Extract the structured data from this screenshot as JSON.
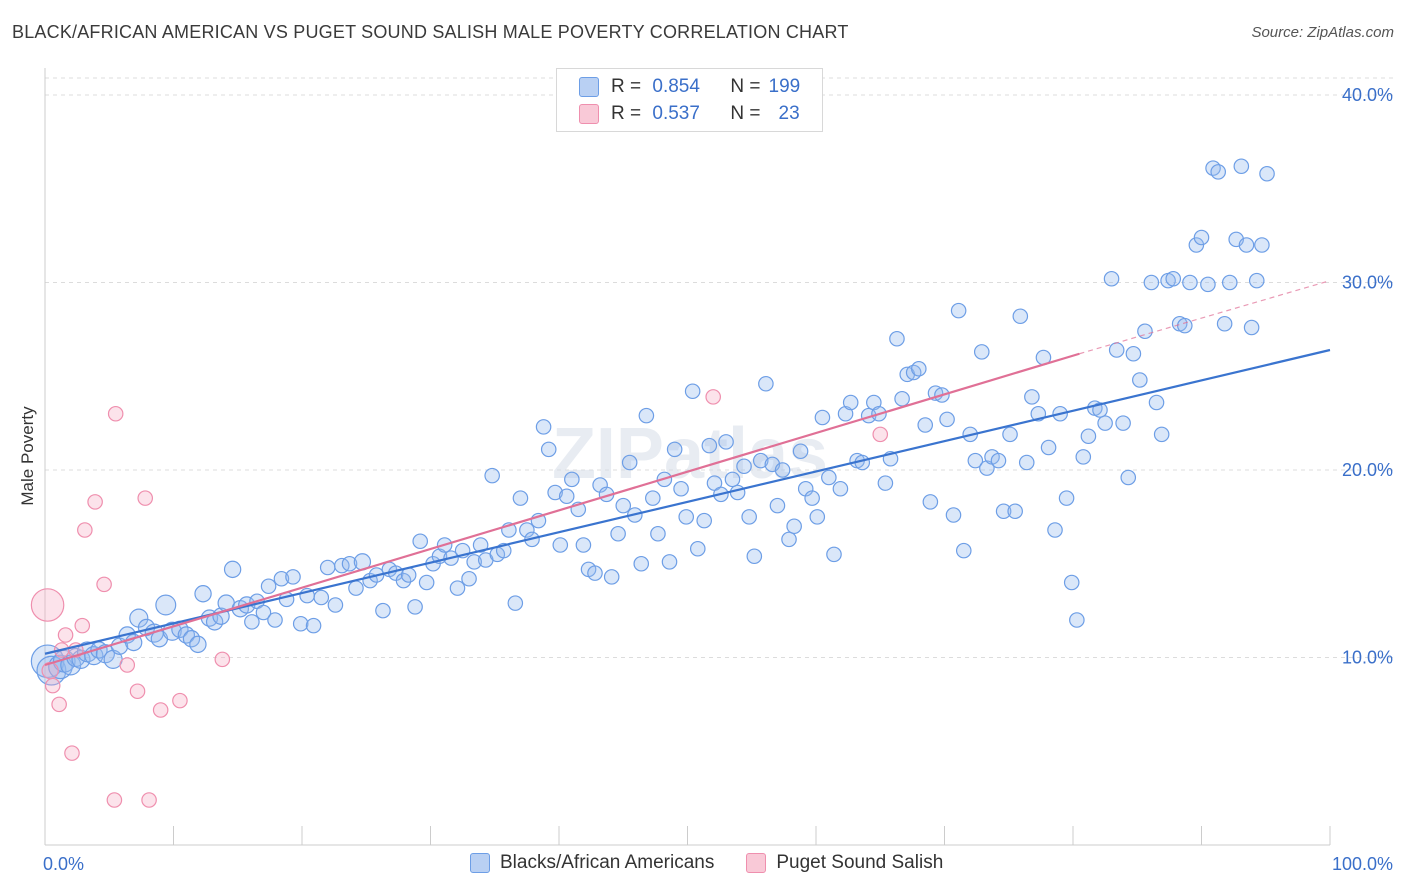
{
  "title": "BLACK/AFRICAN AMERICAN VS PUGET SOUND SALISH MALE POVERTY CORRELATION CHART",
  "source": "Source: ZipAtlas.com",
  "watermark": "ZIPatlas",
  "legend": {
    "row1": {
      "r_label": "R =",
      "r_value": "0.854",
      "n_label": "N =",
      "n_value": "199"
    },
    "row2": {
      "r_label": "R =",
      "r_value": "0.537",
      "n_label": "N =",
      "n_value": "23"
    }
  },
  "chart_data": {
    "type": "scatter",
    "title": "BLACK/AFRICAN AMERICAN VS PUGET SOUND SALISH MALE POVERTY CORRELATION CHART",
    "xlabel": "",
    "ylabel": "Male Poverty",
    "xlim": [
      0,
      100
    ],
    "ylim": [
      0,
      40
    ],
    "x_ticks": [
      "0.0%",
      "100.0%"
    ],
    "y_ticks": [
      {
        "value": 10,
        "label": "10.0%"
      },
      {
        "value": 20,
        "label": "20.0%"
      },
      {
        "value": 30,
        "label": "30.0%"
      },
      {
        "value": 40,
        "label": "40.0%"
      }
    ],
    "grid": true,
    "legend_position": "bottom",
    "colors": {
      "blue": "#6d9ee6",
      "pink": "#ef8fae",
      "blue_line": "#3a74cf",
      "pink_line": "#e07096"
    },
    "series": [
      {
        "name": "Blacks/African Americans",
        "color": "blue",
        "r": 0.854,
        "n": 199,
        "trend": {
          "x0": 0,
          "y0": 10.2,
          "x1": 100,
          "y1": 26.4
        },
        "points": [
          [
            0.2,
            9.8,
            1.8
          ],
          [
            0.5,
            9.3,
            1.6
          ],
          [
            1.2,
            9.5,
            1.3
          ],
          [
            1.5,
            9.8,
            1.2
          ],
          [
            2.0,
            9.6,
            1.1
          ],
          [
            2.4,
            10.0,
            1.0
          ],
          [
            2.8,
            9.9,
            1.0
          ],
          [
            3.3,
            10.3,
            1.1
          ],
          [
            3.8,
            10.1,
            1.0
          ],
          [
            4.2,
            10.4,
            0.9
          ],
          [
            4.7,
            10.2,
            1.0
          ],
          [
            5.3,
            9.9,
            1.0
          ],
          [
            5.8,
            10.6,
            0.9
          ],
          [
            6.4,
            11.2,
            0.9
          ],
          [
            6.9,
            10.8,
            0.9
          ],
          [
            7.3,
            12.1,
            1.0
          ],
          [
            7.9,
            11.6,
            0.9
          ],
          [
            8.5,
            11.3,
            1.0
          ],
          [
            8.9,
            11.0,
            0.9
          ],
          [
            9.4,
            12.8,
            1.1
          ],
          [
            9.9,
            11.4,
            1.0
          ],
          [
            10.5,
            11.5,
            0.9
          ],
          [
            11.0,
            11.2,
            0.9
          ],
          [
            11.4,
            11.0,
            0.9
          ],
          [
            11.9,
            10.7,
            0.9
          ],
          [
            12.3,
            13.4,
            0.9
          ],
          [
            12.8,
            12.1,
            0.9
          ],
          [
            13.2,
            11.9,
            0.9
          ],
          [
            13.7,
            12.2,
            0.9
          ],
          [
            14.1,
            12.9,
            0.9
          ],
          [
            14.6,
            14.7,
            0.9
          ],
          [
            15.2,
            12.6,
            0.9
          ],
          [
            15.7,
            12.8,
            0.9
          ],
          [
            16.1,
            11.9,
            0.8
          ],
          [
            16.5,
            13.0,
            0.8
          ],
          [
            17.0,
            12.4,
            0.8
          ],
          [
            17.4,
            13.8,
            0.8
          ],
          [
            17.9,
            12.0,
            0.8
          ],
          [
            18.4,
            14.2,
            0.8
          ],
          [
            18.8,
            13.1,
            0.8
          ],
          [
            19.3,
            14.3,
            0.8
          ],
          [
            19.9,
            11.8,
            0.8
          ],
          [
            20.4,
            13.3,
            0.8
          ],
          [
            20.9,
            11.7,
            0.8
          ],
          [
            21.5,
            13.2,
            0.8
          ],
          [
            22.0,
            14.8,
            0.8
          ],
          [
            22.6,
            12.8,
            0.8
          ],
          [
            23.1,
            14.9,
            0.8
          ],
          [
            23.7,
            15.0,
            0.8
          ],
          [
            24.2,
            13.7,
            0.8
          ],
          [
            24.7,
            15.1,
            0.9
          ],
          [
            25.3,
            14.1,
            0.8
          ],
          [
            25.8,
            14.4,
            0.8
          ],
          [
            26.3,
            12.5,
            0.8
          ],
          [
            26.8,
            14.7,
            0.8
          ],
          [
            27.3,
            14.5,
            0.8
          ],
          [
            27.9,
            14.1,
            0.8
          ],
          [
            28.3,
            14.4,
            0.8
          ],
          [
            28.8,
            12.7,
            0.8
          ],
          [
            29.2,
            16.2,
            0.8
          ],
          [
            29.7,
            14.0,
            0.8
          ],
          [
            30.2,
            15.0,
            0.8
          ],
          [
            30.7,
            15.4,
            0.8
          ],
          [
            31.1,
            16.0,
            0.8
          ],
          [
            31.6,
            15.3,
            0.8
          ],
          [
            32.1,
            13.7,
            0.8
          ],
          [
            32.5,
            15.7,
            0.8
          ],
          [
            33.0,
            14.2,
            0.8
          ],
          [
            33.4,
            15.1,
            0.8
          ],
          [
            33.9,
            16.0,
            0.8
          ],
          [
            34.3,
            15.2,
            0.8
          ],
          [
            34.8,
            19.7,
            0.8
          ],
          [
            35.2,
            15.5,
            0.8
          ],
          [
            35.7,
            15.7,
            0.8
          ],
          [
            36.1,
            16.8,
            0.8
          ],
          [
            36.6,
            12.9,
            0.8
          ],
          [
            37.0,
            18.5,
            0.8
          ],
          [
            37.5,
            16.8,
            0.8
          ],
          [
            37.9,
            16.3,
            0.8
          ],
          [
            38.4,
            17.3,
            0.8
          ],
          [
            38.8,
            22.3,
            0.8
          ],
          [
            39.2,
            21.1,
            0.8
          ],
          [
            39.7,
            18.8,
            0.8
          ],
          [
            40.1,
            16.0,
            0.8
          ],
          [
            40.6,
            18.6,
            0.8
          ],
          [
            41.0,
            19.5,
            0.8
          ],
          [
            41.5,
            17.9,
            0.8
          ],
          [
            41.9,
            16.0,
            0.8
          ],
          [
            42.3,
            14.7,
            0.8
          ],
          [
            42.8,
            14.5,
            0.8
          ],
          [
            43.2,
            19.2,
            0.8
          ],
          [
            43.7,
            18.7,
            0.8
          ],
          [
            44.1,
            14.3,
            0.8
          ],
          [
            44.6,
            16.6,
            0.8
          ],
          [
            45.0,
            18.1,
            0.8
          ],
          [
            45.5,
            20.4,
            0.8
          ],
          [
            45.9,
            17.6,
            0.8
          ],
          [
            46.4,
            15.0,
            0.8
          ],
          [
            46.8,
            22.9,
            0.8
          ],
          [
            47.3,
            18.5,
            0.8
          ],
          [
            47.7,
            16.6,
            0.8
          ],
          [
            48.2,
            19.5,
            0.8
          ],
          [
            48.6,
            15.1,
            0.8
          ],
          [
            49.0,
            21.1,
            0.8
          ],
          [
            49.5,
            19.0,
            0.8
          ],
          [
            49.9,
            17.5,
            0.8
          ],
          [
            50.4,
            24.2,
            0.8
          ],
          [
            50.8,
            15.8,
            0.8
          ],
          [
            51.3,
            17.3,
            0.8
          ],
          [
            51.7,
            21.3,
            0.8
          ],
          [
            52.1,
            19.3,
            0.8
          ],
          [
            52.6,
            18.7,
            0.8
          ],
          [
            53.0,
            21.5,
            0.8
          ],
          [
            53.5,
            19.5,
            0.8
          ],
          [
            53.9,
            18.8,
            0.8
          ],
          [
            54.4,
            20.2,
            0.8
          ],
          [
            54.8,
            17.5,
            0.8
          ],
          [
            55.2,
            15.4,
            0.8
          ],
          [
            55.7,
            20.5,
            0.8
          ],
          [
            56.1,
            24.6,
            0.8
          ],
          [
            56.6,
            20.3,
            0.8
          ],
          [
            57.0,
            18.1,
            0.8
          ],
          [
            57.4,
            20.0,
            0.8
          ],
          [
            57.9,
            16.3,
            0.8
          ],
          [
            58.3,
            17.0,
            0.8
          ],
          [
            58.8,
            21.0,
            0.8
          ],
          [
            59.2,
            19.0,
            0.8
          ],
          [
            59.7,
            18.5,
            0.8
          ],
          [
            60.1,
            17.5,
            0.8
          ],
          [
            60.5,
            22.8,
            0.8
          ],
          [
            61.0,
            19.6,
            0.8
          ],
          [
            61.4,
            15.5,
            0.8
          ],
          [
            61.9,
            19.0,
            0.8
          ],
          [
            62.3,
            23.0,
            0.8
          ],
          [
            62.7,
            23.6,
            0.8
          ],
          [
            63.2,
            20.5,
            0.8
          ],
          [
            63.6,
            20.4,
            0.8
          ],
          [
            64.1,
            22.9,
            0.8
          ],
          [
            64.5,
            23.6,
            0.8
          ],
          [
            64.9,
            23.0,
            0.8
          ],
          [
            65.4,
            19.3,
            0.8
          ],
          [
            65.8,
            20.6,
            0.8
          ],
          [
            66.3,
            27.0,
            0.8
          ],
          [
            66.7,
            23.8,
            0.8
          ],
          [
            67.1,
            25.1,
            0.8
          ],
          [
            67.6,
            25.2,
            0.8
          ],
          [
            68.0,
            25.4,
            0.8
          ],
          [
            68.5,
            22.4,
            0.8
          ],
          [
            68.9,
            18.3,
            0.8
          ],
          [
            69.3,
            24.1,
            0.8
          ],
          [
            69.8,
            24.0,
            0.8
          ],
          [
            70.2,
            22.7,
            0.8
          ],
          [
            70.7,
            17.6,
            0.8
          ],
          [
            71.1,
            28.5,
            0.8
          ],
          [
            71.5,
            15.7,
            0.8
          ],
          [
            72.0,
            21.9,
            0.8
          ],
          [
            72.4,
            20.5,
            0.8
          ],
          [
            72.9,
            26.3,
            0.8
          ],
          [
            73.3,
            20.1,
            0.8
          ],
          [
            73.7,
            20.7,
            0.8
          ],
          [
            74.2,
            20.5,
            0.8
          ],
          [
            74.6,
            17.8,
            0.8
          ],
          [
            75.1,
            21.9,
            0.8
          ],
          [
            75.5,
            17.8,
            0.8
          ],
          [
            75.9,
            28.2,
            0.8
          ],
          [
            76.4,
            20.4,
            0.8
          ],
          [
            76.8,
            23.9,
            0.8
          ],
          [
            77.3,
            23.0,
            0.8
          ],
          [
            77.7,
            26.0,
            0.8
          ],
          [
            78.1,
            21.2,
            0.8
          ],
          [
            78.6,
            16.8,
            0.8
          ],
          [
            79.0,
            23.0,
            0.8
          ],
          [
            79.5,
            18.5,
            0.8
          ],
          [
            79.9,
            14.0,
            0.8
          ],
          [
            80.3,
            12.0,
            0.8
          ],
          [
            80.8,
            20.7,
            0.8
          ],
          [
            81.2,
            21.8,
            0.8
          ],
          [
            81.7,
            23.3,
            0.8
          ],
          [
            82.1,
            23.2,
            0.8
          ],
          [
            82.5,
            22.5,
            0.8
          ],
          [
            83.0,
            30.2,
            0.8
          ],
          [
            83.4,
            26.4,
            0.8
          ],
          [
            83.9,
            22.5,
            0.8
          ],
          [
            84.3,
            19.6,
            0.8
          ],
          [
            84.7,
            26.2,
            0.8
          ],
          [
            85.2,
            24.8,
            0.8
          ],
          [
            85.6,
            27.4,
            0.8
          ],
          [
            86.1,
            30.0,
            0.8
          ],
          [
            86.5,
            23.6,
            0.8
          ],
          [
            86.9,
            21.9,
            0.8
          ],
          [
            87.4,
            30.1,
            0.8
          ],
          [
            87.8,
            30.2,
            0.8
          ],
          [
            88.3,
            27.8,
            0.8
          ],
          [
            88.7,
            27.7,
            0.8
          ],
          [
            89.1,
            30.0,
            0.8
          ],
          [
            89.6,
            32.0,
            0.8
          ],
          [
            90.0,
            32.4,
            0.8
          ],
          [
            90.5,
            29.9,
            0.8
          ],
          [
            90.9,
            36.1,
            0.8
          ],
          [
            91.3,
            35.9,
            0.8
          ],
          [
            91.8,
            27.8,
            0.8
          ],
          [
            92.2,
            30.0,
            0.8
          ],
          [
            92.7,
            32.3,
            0.8
          ],
          [
            93.1,
            36.2,
            0.8
          ],
          [
            93.5,
            32.0,
            0.8
          ],
          [
            93.9,
            27.6,
            0.8
          ],
          [
            94.3,
            30.1,
            0.8
          ],
          [
            94.7,
            32.0,
            0.8
          ],
          [
            95.1,
            35.8,
            0.8
          ]
        ]
      },
      {
        "name": "Puget Sound Salish",
        "color": "pink",
        "r": 0.537,
        "n": 23,
        "trend": {
          "x0": 0,
          "y0": 9.6,
          "x1": 80.5,
          "y1": 26.2
        },
        "trend_dashed_to": {
          "x1": 100,
          "y1": 30.1
        },
        "points": [
          [
            0.2,
            12.8,
            1.8
          ],
          [
            0.4,
            9.3,
            0.9
          ],
          [
            0.6,
            8.5,
            0.8
          ],
          [
            1.1,
            7.5,
            0.8
          ],
          [
            1.6,
            11.2,
            0.8
          ],
          [
            2.1,
            4.9,
            0.8
          ],
          [
            2.4,
            10.4,
            0.8
          ],
          [
            2.9,
            11.7,
            0.8
          ],
          [
            3.1,
            16.8,
            0.8
          ],
          [
            3.9,
            18.3,
            0.8
          ],
          [
            4.6,
            13.9,
            0.8
          ],
          [
            5.4,
            2.4,
            0.8
          ],
          [
            5.5,
            23.0,
            0.8
          ],
          [
            6.4,
            9.6,
            0.8
          ],
          [
            7.2,
            8.2,
            0.8
          ],
          [
            7.8,
            18.5,
            0.8
          ],
          [
            8.1,
            2.4,
            0.8
          ],
          [
            9.0,
            7.2,
            0.8
          ],
          [
            10.5,
            7.7,
            0.8
          ],
          [
            13.8,
            9.9,
            0.8
          ],
          [
            52.0,
            23.9,
            0.8
          ],
          [
            65.0,
            21.9,
            0.8
          ],
          [
            1.3,
            10.4,
            0.8
          ]
        ]
      }
    ]
  },
  "bottom_legend": {
    "series1": "Blacks/African Americans",
    "series2": "Puget Sound Salish"
  }
}
